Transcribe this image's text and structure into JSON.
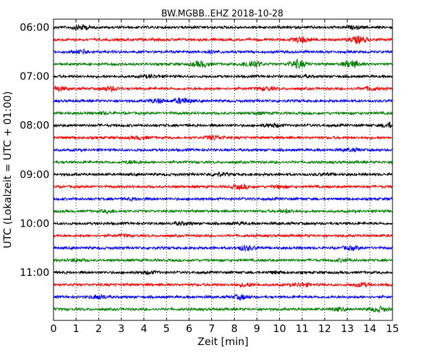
{
  "chart_data": {
    "type": "line",
    "title": "BW.MGBB..EHZ 2018-10-28",
    "xlabel": "Zeit  [min]",
    "ylabel": "UTC (Lokalzeit = UTC + 01:00)",
    "xlim": [
      0,
      15
    ],
    "x_ticks": [
      "0",
      "1",
      "2",
      "3",
      "4",
      "5",
      "6",
      "7",
      "8",
      "9",
      "10",
      "11",
      "12",
      "13",
      "14",
      "15"
    ],
    "y_ticks": [
      "06:00",
      "07:00",
      "08:00",
      "09:00",
      "10:00",
      "11:00"
    ],
    "trace_colors": [
      "#000000",
      "#ff0000",
      "#0000ff",
      "#008000"
    ],
    "grid": "vertical dotted",
    "series": [
      {
        "start": "06:00",
        "color": "#000000",
        "bursts": [
          [
            1.2,
            0.6
          ],
          [
            13.3,
            0.3
          ]
        ]
      },
      {
        "start": "06:15",
        "color": "#ff0000",
        "bursts": [
          [
            11.0,
            0.7
          ],
          [
            13.5,
            0.9
          ]
        ]
      },
      {
        "start": "06:30",
        "color": "#0000ff",
        "bursts": [
          [
            1.3,
            0.4
          ],
          [
            7.0,
            0.2
          ]
        ]
      },
      {
        "start": "06:45",
        "color": "#008000",
        "bursts": [
          [
            6.5,
            0.7
          ],
          [
            8.8,
            0.9
          ],
          [
            10.8,
            1.0
          ],
          [
            13.2,
            0.9
          ]
        ]
      },
      {
        "start": "07:00",
        "color": "#000000",
        "bursts": [
          [
            4.3,
            0.3
          ],
          [
            11.0,
            0.2
          ]
        ]
      },
      {
        "start": "07:15",
        "color": "#ff0000",
        "bursts": [
          [
            0.2,
            0.5
          ],
          [
            2.5,
            0.5
          ],
          [
            9.4,
            0.4
          ],
          [
            14.0,
            0.4
          ]
        ]
      },
      {
        "start": "07:30",
        "color": "#0000ff",
        "bursts": [
          [
            4.6,
            0.5
          ],
          [
            5.7,
            0.7
          ]
        ]
      },
      {
        "start": "07:45",
        "color": "#008000",
        "bursts": [
          [
            2.2,
            0.2
          ],
          [
            9.0,
            0.2
          ]
        ]
      },
      {
        "start": "08:00",
        "color": "#000000",
        "bursts": [
          [
            9.7,
            0.4
          ],
          [
            14.9,
            0.6
          ]
        ]
      },
      {
        "start": "08:15",
        "color": "#ff0000",
        "bursts": [
          [
            3.8,
            0.3
          ],
          [
            7.1,
            0.5
          ]
        ]
      },
      {
        "start": "08:30",
        "color": "#0000ff",
        "bursts": [
          [
            13.2,
            0.3
          ]
        ]
      },
      {
        "start": "08:45",
        "color": "#008000",
        "bursts": [
          [
            3.5,
            0.3
          ]
        ]
      },
      {
        "start": "09:00",
        "color": "#000000",
        "bursts": [
          [
            7.3,
            0.4
          ],
          [
            12.0,
            0.2
          ]
        ]
      },
      {
        "start": "09:15",
        "color": "#ff0000",
        "bursts": [
          [
            8.3,
            0.5
          ],
          [
            10.0,
            0.3
          ]
        ]
      },
      {
        "start": "09:30",
        "color": "#0000ff",
        "bursts": [
          [
            3.6,
            0.2
          ]
        ]
      },
      {
        "start": "09:45",
        "color": "#008000",
        "bursts": [
          [
            2.5,
            0.3
          ],
          [
            10.3,
            0.3
          ]
        ]
      },
      {
        "start": "10:00",
        "color": "#000000",
        "bursts": [
          [
            5.7,
            0.3
          ],
          [
            8.2,
            0.2
          ]
        ]
      },
      {
        "start": "10:15",
        "color": "#ff0000",
        "bursts": [
          [
            3.2,
            0.2
          ]
        ]
      },
      {
        "start": "10:30",
        "color": "#0000ff",
        "bursts": [
          [
            8.5,
            0.6
          ],
          [
            13.2,
            0.4
          ]
        ]
      },
      {
        "start": "10:45",
        "color": "#008000",
        "bursts": [
          [
            1.0,
            0.3
          ],
          [
            12.8,
            0.3
          ]
        ]
      },
      {
        "start": "11:00",
        "color": "#000000",
        "bursts": [
          [
            4.2,
            0.3
          ],
          [
            9.8,
            0.2
          ]
        ]
      },
      {
        "start": "11:15",
        "color": "#ff0000",
        "bursts": [
          [
            8.5,
            0.4
          ],
          [
            11.0,
            0.4
          ],
          [
            13.6,
            0.4
          ]
        ]
      },
      {
        "start": "11:30",
        "color": "#0000ff",
        "bursts": [
          [
            2.0,
            0.5
          ],
          [
            8.3,
            0.5
          ]
        ]
      },
      {
        "start": "11:45",
        "color": "#008000",
        "bursts": [
          [
            12.6,
            0.3
          ],
          [
            14.4,
            0.6
          ]
        ]
      }
    ]
  }
}
